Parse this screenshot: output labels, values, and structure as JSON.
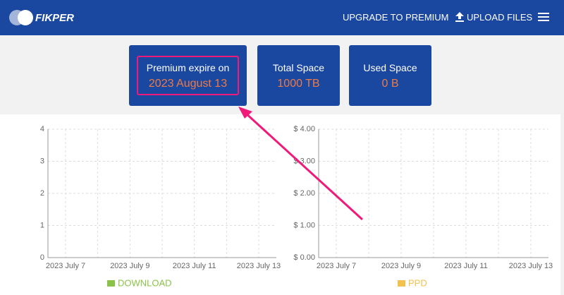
{
  "header": {
    "logo": "FIKPER",
    "nav": [
      "UPGRADE TO PREMIUM",
      "UPLOAD FILES"
    ]
  },
  "cards": [
    {
      "label": "Premium expire on",
      "value": "2023 August 13"
    },
    {
      "label": "Total Space",
      "value": "1000 TB"
    },
    {
      "label": "Used Space",
      "value": "0 B"
    }
  ],
  "chart_data": [
    {
      "type": "line",
      "categories": [
        "2023 July 7",
        null,
        "2023 July 9",
        null,
        "2023 July 11",
        null,
        "2023 July 13"
      ],
      "series": [
        {
          "name": "DOWNLOAD",
          "color": "#8bc34a",
          "values": [
            null,
            null,
            null,
            null,
            null,
            null,
            null
          ]
        }
      ],
      "ylim": [
        0,
        4
      ],
      "yticks": [
        0,
        1,
        2,
        3,
        4
      ],
      "grid": true
    },
    {
      "type": "line",
      "categories": [
        "2023 July 7",
        null,
        "2023 July 9",
        null,
        "2023 July 11",
        null,
        "2023 July 13"
      ],
      "series": [
        {
          "name": "PPD",
          "color": "#f2c14e",
          "values": [
            null,
            null,
            null,
            null,
            null,
            null,
            null
          ]
        }
      ],
      "ylim": [
        0,
        4
      ],
      "yticks": [
        {
          "value": 0,
          "label": "$ 0.00"
        },
        {
          "value": 1,
          "label": "$ 1.00"
        },
        {
          "value": 2,
          "label": "$ 2.00"
        },
        {
          "value": 3,
          "label": "$ 3.00"
        },
        {
          "value": 4,
          "label": "$ 4.00"
        }
      ],
      "grid": true
    }
  ]
}
